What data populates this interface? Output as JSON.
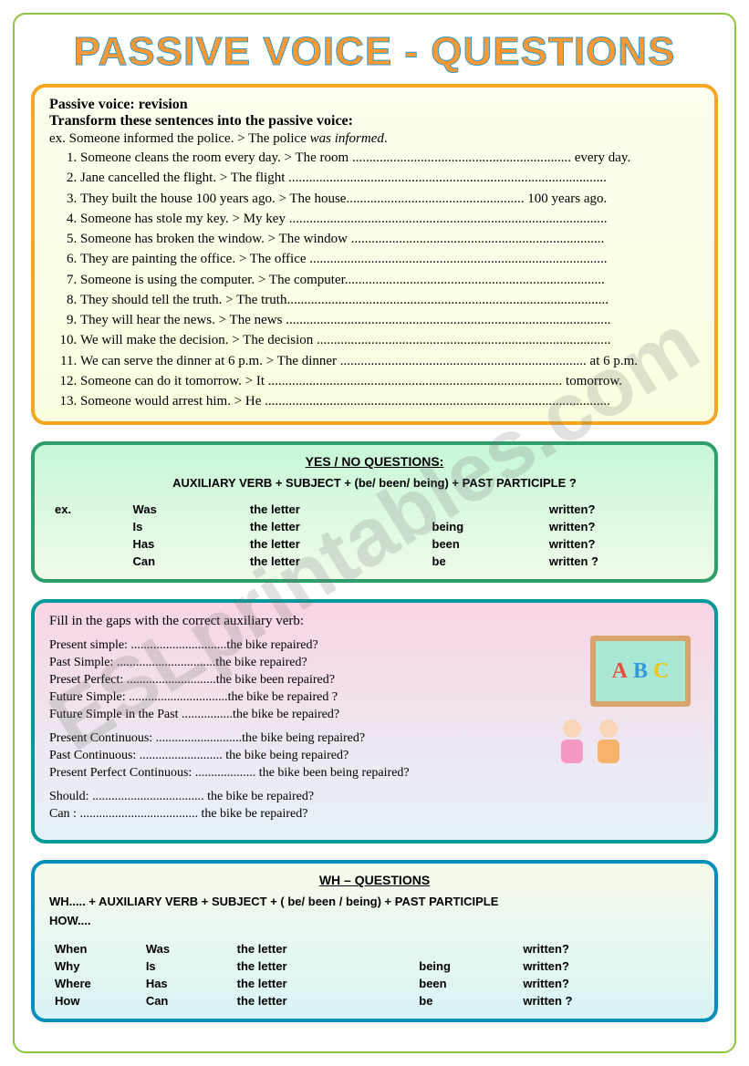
{
  "title": "PASSIVE VOICE - QUESTIONS",
  "colors": {
    "frame_border": "#8cc63f",
    "title_fill": "#ff9933",
    "title_stroke": "#3399cc",
    "box1_border": "#f5a623",
    "box2_border": "#2e9e6b",
    "box3_border": "#009999",
    "box4_border": "#008fbf"
  },
  "watermark": "ESLprintables.com",
  "box1": {
    "heading": "Passive voice: revision",
    "instruction": "Transform these sentences into the passive voice:",
    "example_pre": "ex. Someone informed the police. > The police ",
    "example_em": "was informed",
    "example_post": ".",
    "items": [
      "Someone cleans the room every day.  >  The room ................................................................ every day.",
      "Jane cancelled the flight. > The flight .............................................................................................",
      "They built the house 100 years ago. > The house.................................................... 100 years ago.",
      "Someone has stole my key. > My key .............................................................................................",
      "Someone has broken the window. > The window ..........................................................................",
      "They are painting the office. > The office .......................................................................................",
      "Someone is using the computer. > The computer............................................................................",
      "They should tell the truth. > The truth..............................................................................................",
      "They will hear the news. > The news ...............................................................................................",
      "We will make the decision. > The decision ......................................................................................",
      "We can serve the dinner at 6 p.m. > The dinner ........................................................................ at 6 p.m.",
      "Someone can do it tomorrow. > It ...................................................................................... tomorrow.",
      "Someone would arrest him. > He ....................................................................................................."
    ]
  },
  "box2": {
    "title": "YES / NO QUESTIONS:",
    "formula": "AUXILIARY VERB +  SUBJECT + (be/ been/ being) + PAST PARTICIPLE     ?",
    "ex_label": "ex.",
    "rows": [
      [
        "Was",
        "the letter",
        "",
        "written?"
      ],
      [
        "Is",
        "the letter",
        "being",
        "written?"
      ],
      [
        "Has",
        "the letter",
        "been",
        "written?"
      ],
      [
        "Can",
        "the letter",
        "be",
        "written ?"
      ]
    ]
  },
  "box3": {
    "instruction": "Fill in the gaps with the correct auxiliary verb:",
    "groups": [
      [
        {
          "label": "Present simple:",
          "rest": "..............................the bike repaired?"
        },
        {
          "label": "Past Simple:",
          "rest": "...............................the bike repaired?"
        },
        {
          "label": "Preset Perfect:",
          "rest": "............................the bike been repaired?"
        },
        {
          "label": "Future Simple:",
          "rest": "...............................the bike be repaired ?"
        },
        {
          "label": "Future Simple in the Past",
          "rest": "................the bike be repaired?"
        }
      ],
      [
        {
          "label": "Present Continuous:",
          "rest": "...........................the bike being repaired?"
        },
        {
          "label": "Past Continuous:",
          "rest": ".......................... the bike being repaired?"
        },
        {
          "label": "Present Perfect Continuous:",
          "rest": "................... the bike been being repaired?"
        }
      ],
      [
        {
          "label": "Should:",
          "rest": "................................... the bike be repaired?"
        },
        {
          "label": "Can :",
          "rest": "..................................... the bike be repaired?"
        }
      ]
    ],
    "board_letters": [
      "A",
      "B",
      "C"
    ]
  },
  "box4": {
    "title": "WH – QUESTIONS",
    "formula_l1": "WH..... + AUXILIARY VERB + SUBJECT + ( be/ been / being) + PAST PARTICIPLE",
    "formula_l2": "HOW....",
    "rows": [
      [
        "When",
        "Was",
        "the letter",
        "",
        "written?"
      ],
      [
        "Why",
        "Is",
        "the letter",
        "being",
        "written?"
      ],
      [
        "Where",
        "Has",
        "the letter",
        "been",
        "written?"
      ],
      [
        "How",
        "Can",
        "the letter",
        "be",
        "written ?"
      ]
    ]
  }
}
